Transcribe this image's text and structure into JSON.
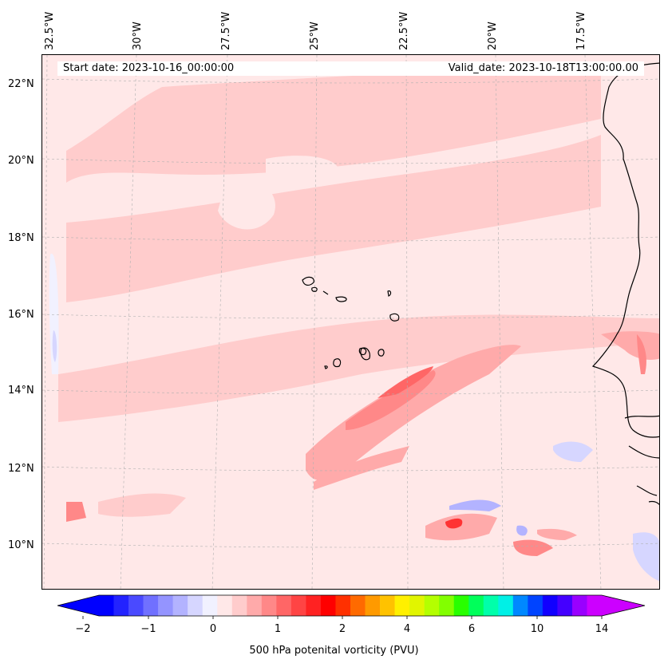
{
  "header": {
    "start_date": "Start date: 2023-10-16_00:00:00",
    "valid_date": "Valid_date: 2023-10-18T13:00:00.00"
  },
  "map": {
    "lon_labels": [
      "32.5°W",
      "30°W",
      "27.5°W",
      "25°W",
      "22.5°W",
      "20°W",
      "17.5°W"
    ],
    "lat_labels": [
      "22°N",
      "20°N",
      "18°N",
      "16°N",
      "14°N",
      "12°N",
      "10°N"
    ],
    "gridlines": "dashed-gray",
    "background_color": "#ffe8e8"
  },
  "colorbar": {
    "label": "500 hPa potenital vorticity (PVU)",
    "ticks": [
      "−2",
      "−1",
      "0",
      "1",
      "2",
      "4",
      "6",
      "10",
      "14"
    ],
    "colors": [
      "#0000ff",
      "#2323ff",
      "#4a4aff",
      "#7070ff",
      "#9494ff",
      "#b3b3ff",
      "#d6d6ff",
      "#f1f1ff",
      "#ffe8e8",
      "#ffcccc",
      "#ffaaaa",
      "#ff8888",
      "#ff6666",
      "#ff4444",
      "#ff2222",
      "#ff0000",
      "#ff3000",
      "#ff6a00",
      "#ff9a00",
      "#ffc200",
      "#fff000",
      "#e1f500",
      "#b4ff00",
      "#82ff00",
      "#28ff00",
      "#00ff5a",
      "#00ffaa",
      "#00f0e6",
      "#0088ff",
      "#0044ff",
      "#1100ff",
      "#4400ff",
      "#9900ff",
      "#cc00ff"
    ],
    "extend_low_color": "#0000ff",
    "extend_high_color": "#cc00ff"
  }
}
